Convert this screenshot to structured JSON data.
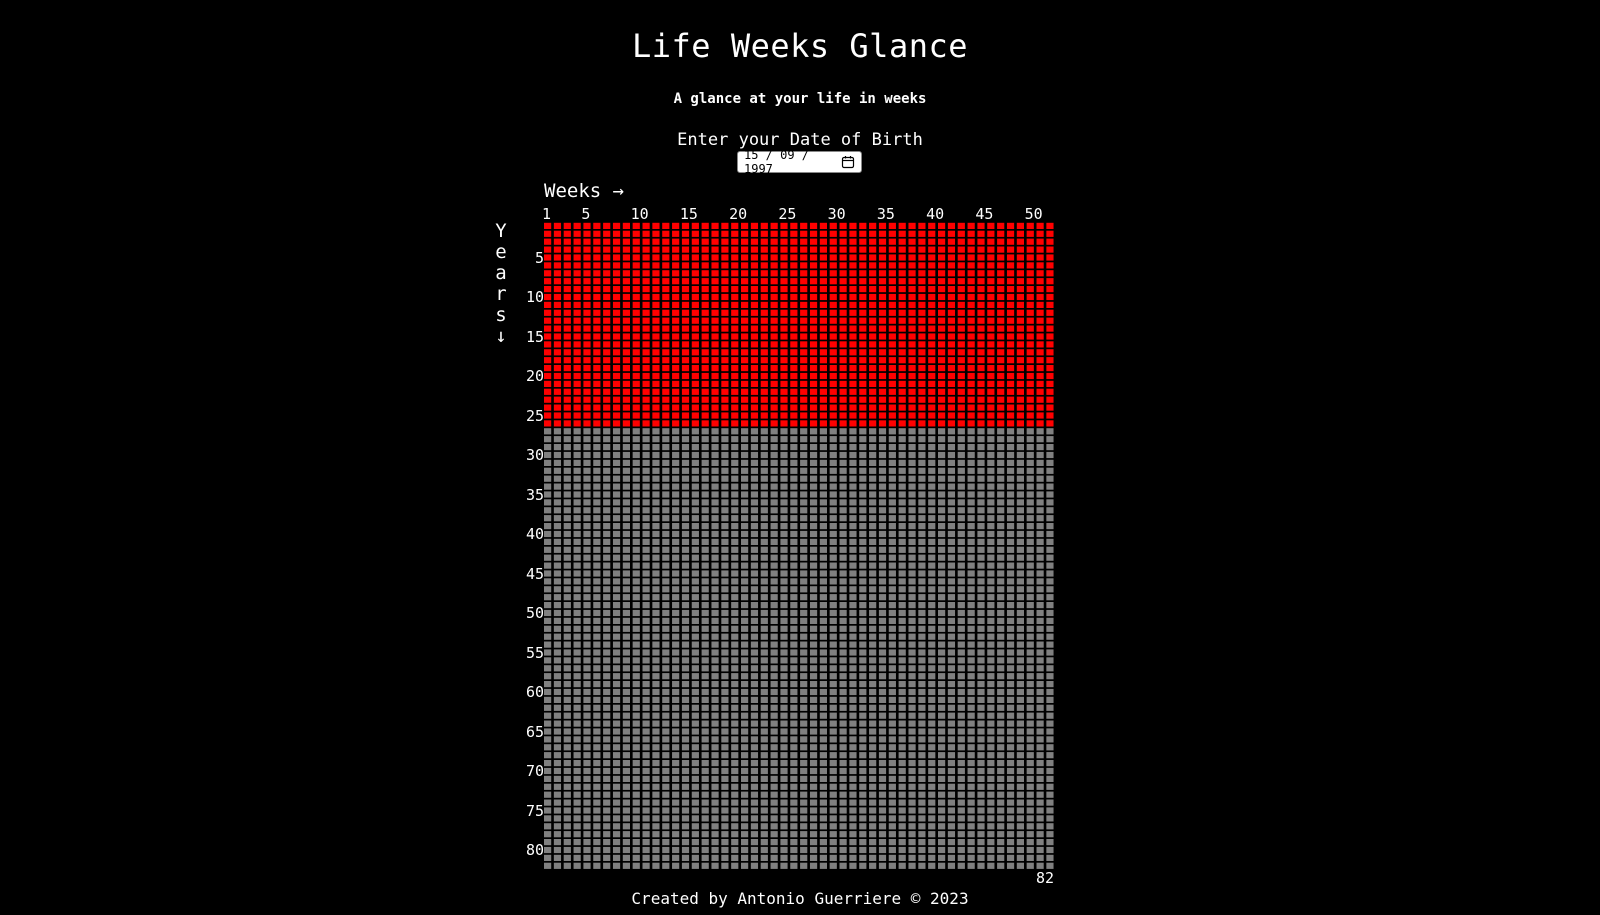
{
  "header": {
    "title": "Life Weeks Glance",
    "subtitle": "A glance at your life in weeks"
  },
  "dob": {
    "label": "Enter your Date of Birth",
    "value": "15 / 09 / 1997",
    "icon": "calendar-icon"
  },
  "grid": {
    "x_axis_label": "Weeks →",
    "y_axis_label": [
      "Y",
      "e",
      "a",
      "r",
      "s",
      "↓"
    ],
    "week_ticks": [
      "1",
      "5",
      "10",
      "15",
      "20",
      "25",
      "30",
      "35",
      "40",
      "45",
      "50"
    ],
    "year_ticks": [
      "5",
      "10",
      "15",
      "20",
      "25",
      "30",
      "35",
      "40",
      "45",
      "50",
      "55",
      "60",
      "65",
      "70",
      "75",
      "80"
    ],
    "end_label": "82",
    "weeks_per_year": 52,
    "total_years": 82,
    "years_lived": 26,
    "colors": {
      "lived": "#ff0000",
      "remaining": "#808080",
      "gap": "#000000"
    }
  },
  "footer": {
    "text": "Created by Antonio Guerriere © 2023"
  }
}
